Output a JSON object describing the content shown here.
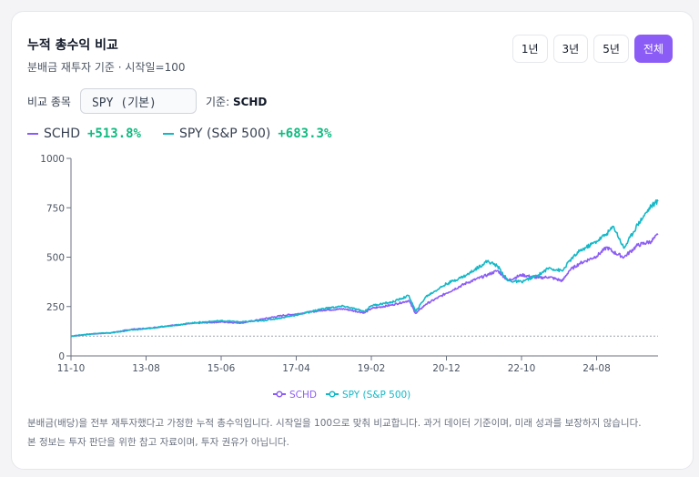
{
  "header": {
    "title": "누적 총수익 비교",
    "subtitle": "분배금 재투자 기준 · 시작일=100"
  },
  "periods": [
    {
      "label": "1년",
      "active": false
    },
    {
      "label": "3년",
      "active": false
    },
    {
      "label": "5년",
      "active": false
    },
    {
      "label": "전체",
      "active": true
    }
  ],
  "compare": {
    "label": "비교 종목",
    "selected": "SPY (기본)",
    "base_label": "기준:",
    "base_value": "SCHD"
  },
  "legend_top": [
    {
      "name": "SCHD",
      "value": "+513.8%"
    },
    {
      "name": "SPY (S&P 500)",
      "value": "+683.3%"
    }
  ],
  "colors": {
    "schd": "#8b5cf6",
    "spy": "#14b8c7",
    "positive": "#10b981",
    "accent": "#8b5cf6"
  },
  "chart_data": {
    "type": "line",
    "x_ticks": [
      "11-10",
      "13-08",
      "15-06",
      "17-04",
      "19-02",
      "20-12",
      "22-10",
      "24-08"
    ],
    "y_ticks": [
      "0",
      "250",
      "500",
      "750",
      "1000"
    ],
    "ylim": [
      0,
      1000
    ],
    "xlim": [
      "2011-10",
      "2026-02"
    ],
    "baseline": 100,
    "grid": false,
    "legend_position": "bottom",
    "series": [
      {
        "name": "SCHD",
        "points": [
          [
            "2011-10",
            100
          ],
          [
            "2012-04",
            111
          ],
          [
            "2012-10",
            118
          ],
          [
            "2013-04",
            135
          ],
          [
            "2013-08",
            139
          ],
          [
            "2014-04",
            155
          ],
          [
            "2014-10",
            165
          ],
          [
            "2015-06",
            172
          ],
          [
            "2015-12",
            167
          ],
          [
            "2016-06",
            186
          ],
          [
            "2016-12",
            205
          ],
          [
            "2017-04",
            212
          ],
          [
            "2017-12",
            232
          ],
          [
            "2018-06",
            238
          ],
          [
            "2018-12",
            218
          ],
          [
            "2019-02",
            240
          ],
          [
            "2019-08",
            258
          ],
          [
            "2020-01",
            280
          ],
          [
            "2020-03",
            215
          ],
          [
            "2020-06",
            262
          ],
          [
            "2020-12",
            318
          ],
          [
            "2021-06",
            370
          ],
          [
            "2021-12",
            410
          ],
          [
            "2022-03",
            432
          ],
          [
            "2022-06",
            382
          ],
          [
            "2022-10",
            410
          ],
          [
            "2023-03",
            395
          ],
          [
            "2023-06",
            400
          ],
          [
            "2023-10",
            380
          ],
          [
            "2023-12",
            432
          ],
          [
            "2024-03",
            468
          ],
          [
            "2024-08",
            505
          ],
          [
            "2024-11",
            550
          ],
          [
            "2025-01",
            525
          ],
          [
            "2025-04",
            500
          ],
          [
            "2025-08",
            560
          ],
          [
            "2025-12",
            580
          ],
          [
            "2026-02",
            614
          ]
        ]
      },
      {
        "name": "SPY (S&P 500)",
        "points": [
          [
            "2011-10",
            100
          ],
          [
            "2012-04",
            112
          ],
          [
            "2012-10",
            117
          ],
          [
            "2013-04",
            132
          ],
          [
            "2013-08",
            137
          ],
          [
            "2014-04",
            155
          ],
          [
            "2014-10",
            168
          ],
          [
            "2015-06",
            178
          ],
          [
            "2015-12",
            172
          ],
          [
            "2016-06",
            178
          ],
          [
            "2016-12",
            194
          ],
          [
            "2017-04",
            207
          ],
          [
            "2017-12",
            240
          ],
          [
            "2018-06",
            252
          ],
          [
            "2018-12",
            225
          ],
          [
            "2019-02",
            255
          ],
          [
            "2019-08",
            272
          ],
          [
            "2020-01",
            305
          ],
          [
            "2020-03",
            225
          ],
          [
            "2020-06",
            300
          ],
          [
            "2020-12",
            365
          ],
          [
            "2021-06",
            410
          ],
          [
            "2021-12",
            480
          ],
          [
            "2022-03",
            455
          ],
          [
            "2022-06",
            380
          ],
          [
            "2022-10",
            375
          ],
          [
            "2023-03",
            410
          ],
          [
            "2023-06",
            445
          ],
          [
            "2023-10",
            430
          ],
          [
            "2023-12",
            480
          ],
          [
            "2024-03",
            530
          ],
          [
            "2024-08",
            580
          ],
          [
            "2024-11",
            620
          ],
          [
            "2025-01",
            655
          ],
          [
            "2025-04",
            545
          ],
          [
            "2025-08",
            665
          ],
          [
            "2025-12",
            760
          ],
          [
            "2026-02",
            783
          ]
        ]
      }
    ]
  },
  "notes": [
    "분배금(배당)을 전부 재투자했다고 가정한 누적 총수익입니다. 시작일을 100으로 맞춰 비교합니다. 과거 데이터 기준이며, 미래 성과를 보장하지 않습니다.",
    "본 정보는 투자 판단을 위한 참고 자료이며, 투자 권유가 아닙니다."
  ]
}
